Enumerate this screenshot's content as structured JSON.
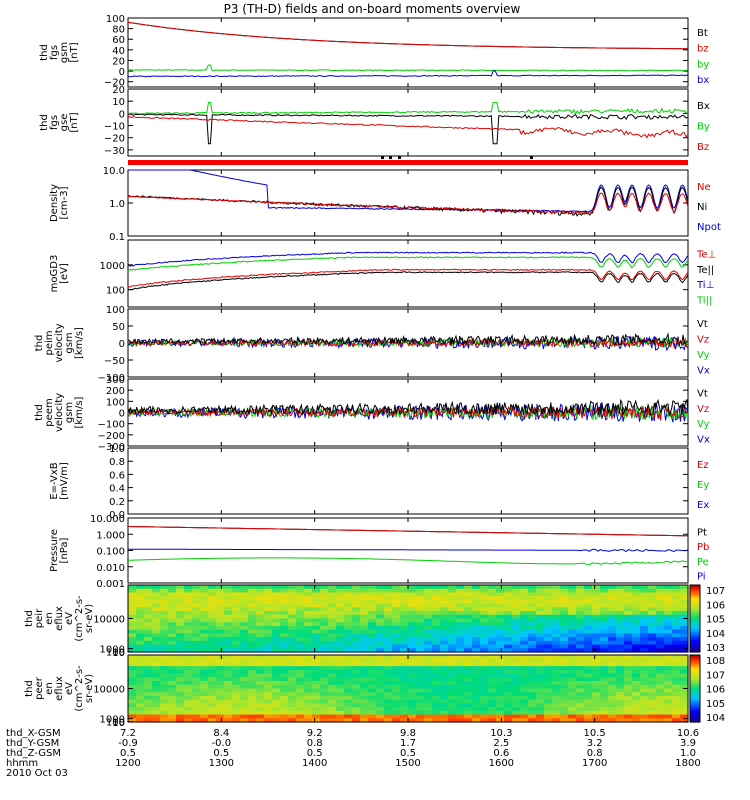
{
  "title": "P3 (TH-D) fields and on-board moments overview",
  "colors": {
    "black": "#000000",
    "red": "#e00000",
    "green": "#00d000",
    "blue": "#0000e0",
    "bar": "#ff0000"
  },
  "chart_data": [
    {
      "type": "line",
      "panel": "fgs-gsm",
      "ylabel": [
        "thd",
        "fgs",
        "gsm",
        "[nT]"
      ],
      "ylim": [
        -30,
        100
      ],
      "ticks": [
        100,
        80,
        60,
        40,
        20,
        0,
        -20
      ],
      "series": [
        {
          "name": "Bt",
          "color": "black",
          "start": 92,
          "end": 40,
          "shape": "decay"
        },
        {
          "name": "bz",
          "color": "red",
          "start": 92,
          "end": 40,
          "shape": "decay"
        },
        {
          "name": "by",
          "color": "green",
          "start": 2,
          "end": 1,
          "shape": "flat"
        },
        {
          "name": "bx",
          "color": "blue",
          "start": -10,
          "end": -8,
          "shape": "flat"
        }
      ]
    },
    {
      "type": "line",
      "panel": "fgs-gse",
      "ylabel": [
        "thd",
        "fgs",
        "gse",
        "[nT]"
      ],
      "ylim": [
        -35,
        20
      ],
      "ticks": [
        20,
        10,
        0,
        -10,
        -20,
        -30
      ],
      "series": [
        {
          "name": "Bx",
          "color": "black",
          "start": -1,
          "end": -3,
          "shape": "flat"
        },
        {
          "name": "By",
          "color": "green",
          "start": 0,
          "end": 2,
          "shape": "flat"
        },
        {
          "name": "Bz",
          "color": "red",
          "start": -3,
          "end": -18,
          "shape": "linear"
        }
      ]
    },
    {
      "type": "line",
      "panel": "density",
      "ylabel": [
        "Density",
        "[cm-3]"
      ],
      "log": true,
      "ylim": [
        0.1,
        10
      ],
      "ticks": [
        "10.0",
        "1.0",
        "0.1"
      ],
      "series": [
        {
          "name": "Ne",
          "color": "red"
        },
        {
          "name": "Ni",
          "color": "black"
        },
        {
          "name": "Npot",
          "color": "blue"
        }
      ]
    },
    {
      "type": "line",
      "panel": "temperature",
      "ylabel": [
        "moGD3",
        "[eV]"
      ],
      "log": true,
      "ylim": [
        20,
        10000
      ],
      "ticks": [
        "1000",
        "100"
      ],
      "series": [
        {
          "name": "Te⊥",
          "color": "red"
        },
        {
          "name": "Te||",
          "color": "black"
        },
        {
          "name": "Ti⊥",
          "color": "blue"
        },
        {
          "name": "Ti||",
          "color": "green"
        }
      ]
    },
    {
      "type": "line",
      "panel": "peim-velocity",
      "ylabel": [
        "thd",
        "peim",
        "velocity",
        "gsm",
        "[km/s]"
      ],
      "ylim": [
        -100,
        100
      ],
      "ticks": [
        100,
        50,
        0,
        -50,
        -100
      ],
      "series": [
        {
          "name": "Vt",
          "color": "black"
        },
        {
          "name": "Vz",
          "color": "red"
        },
        {
          "name": "Vy",
          "color": "green"
        },
        {
          "name": "Vx",
          "color": "blue"
        }
      ]
    },
    {
      "type": "line",
      "panel": "peem-velocity",
      "ylabel": [
        "thd",
        "peem",
        "velocity",
        "gsm",
        "[km/s]"
      ],
      "ylim": [
        -300,
        300
      ],
      "ticks": [
        300,
        200,
        100,
        0,
        -100,
        -200,
        -300
      ],
      "series": [
        {
          "name": "Vt",
          "color": "black"
        },
        {
          "name": "Vz",
          "color": "red"
        },
        {
          "name": "Vy",
          "color": "green"
        },
        {
          "name": "Vx",
          "color": "blue"
        }
      ]
    },
    {
      "type": "line",
      "panel": "efield",
      "ylabel": [
        "E=-VxB",
        "[mV/m]"
      ],
      "ylim": [
        0,
        1
      ],
      "ticks": [
        "1.0",
        "0.8",
        "0.6",
        "0.4",
        "0.2",
        "0.0"
      ],
      "series": [
        {
          "name": "Ez",
          "color": "red"
        },
        {
          "name": "Ey",
          "color": "green"
        },
        {
          "name": "Ex",
          "color": "blue"
        }
      ]
    },
    {
      "type": "line",
      "panel": "pressure",
      "ylabel": [
        "Pressure",
        "[nPa]"
      ],
      "log": true,
      "ylim": [
        0.001,
        10
      ],
      "ticks": [
        "10.000",
        "1.000",
        "0.100",
        "0.010",
        "0.001"
      ],
      "series": [
        {
          "name": "Pt",
          "color": "black",
          "start": 3.0,
          "end": 0.8
        },
        {
          "name": "Pb",
          "color": "red",
          "start": 3.0,
          "end": 0.8
        },
        {
          "name": "Pe",
          "color": "green",
          "start": 0.03,
          "end": 0.03
        },
        {
          "name": "Pi",
          "color": "blue",
          "start": 0.12,
          "end": 0.1
        }
      ]
    },
    {
      "type": "heatmap",
      "panel": "peir",
      "ylabel": [
        "thd",
        "peir",
        "en",
        "eflux",
        "eV",
        "(cm^2-s-",
        "sr-eV)"
      ],
      "ylim": [
        5,
        20000
      ],
      "ticks": [
        "10000",
        "1000",
        "100",
        "10"
      ],
      "colorbar": {
        "labels": [
          "10^7",
          "10^6",
          "10^5",
          "10^4",
          "10^3"
        ]
      }
    },
    {
      "type": "heatmap",
      "panel": "peer",
      "ylabel": [
        "thd",
        "peer",
        "en",
        "eflux",
        "eV",
        "(cm^2-s-",
        "sr-eV)"
      ],
      "ylim": [
        5,
        20000
      ],
      "ticks": [
        "10000",
        "1000",
        "100",
        "10"
      ],
      "colorbar": {
        "labels": [
          "10^8",
          "10^7",
          "10^6",
          "10^5",
          "10^4"
        ]
      }
    }
  ],
  "x_axis": {
    "rows": [
      {
        "label": "thd_X-GSM",
        "values": [
          "7.2",
          "8.4",
          "9.2",
          "9.8",
          "10.3",
          "10.5",
          "10.6"
        ]
      },
      {
        "label": "thd_Y-GSM",
        "values": [
          "-0.9",
          "-0.0",
          "0.8",
          "1.7",
          "2.5",
          "3.2",
          "3.9"
        ]
      },
      {
        "label": "thd_Z-GSM",
        "values": [
          "0.5",
          "0.5",
          "0.5",
          "0.5",
          "0.6",
          "0.8",
          "1.0"
        ]
      },
      {
        "label": "hhmm",
        "values": [
          "1200",
          "1300",
          "1400",
          "1500",
          "1600",
          "1700",
          "1800"
        ]
      }
    ],
    "date": "2010 Oct 03"
  }
}
